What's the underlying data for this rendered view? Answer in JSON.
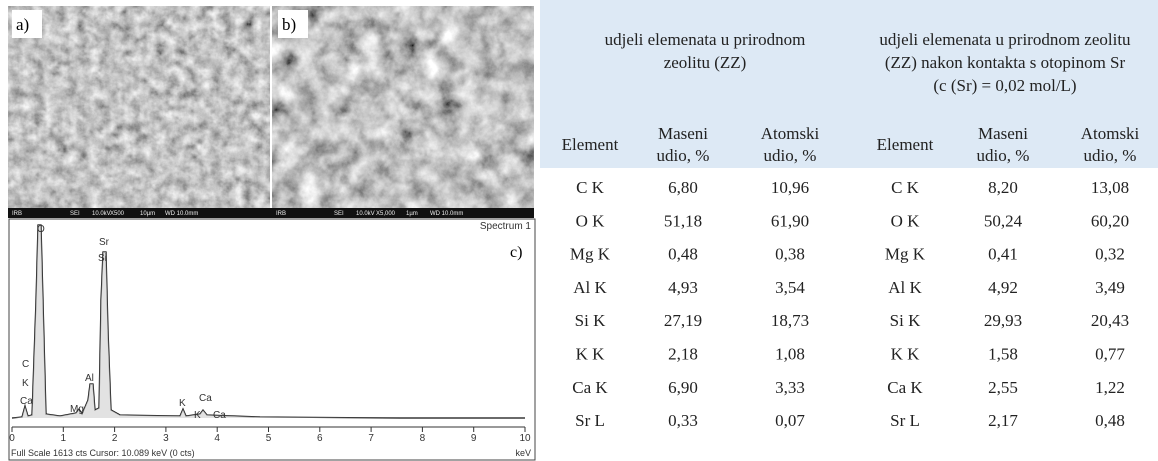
{
  "figure": {
    "panels": [
      {
        "label": "a)",
        "info": [
          "IRB",
          "SEI",
          "10.0kV",
          "X500",
          "10µm",
          "WD 10.0mm"
        ]
      },
      {
        "label": "b)",
        "info": [
          "IRB",
          "SEI",
          "10.0kV",
          "X5,000",
          "1µm",
          "WD 10.0mm"
        ]
      }
    ],
    "spectrum": {
      "label": "c)",
      "title": "Spectrum 1",
      "unit": "keV",
      "footer": "Full Scale 1613 cts  Cursor: 10.089 keV (0 cts)",
      "xlim": [
        0,
        10
      ],
      "xticks": [
        0,
        1,
        2,
        3,
        4,
        5,
        6,
        7,
        8,
        9,
        10
      ],
      "peak_labels": [
        "O",
        "Sr",
        "Si",
        "C",
        "K",
        "Ca",
        "Mg",
        "Al",
        "K",
        "Ca",
        "K",
        "Ca"
      ]
    }
  },
  "table": {
    "group_headers": [
      [
        "udjeli elemenata u prirodnom",
        "zeolitu (ZZ)"
      ],
      [
        "udjeli elemenata u prirodnom zeolitu",
        "(ZZ)  nakon kontakta s otopinom Sr",
        "(c (Sr) = 0,02 mol/L)"
      ]
    ],
    "column_headers": [
      [
        "Element"
      ],
      [
        "Maseni",
        "udio, %"
      ],
      [
        "Atomski",
        "udio, %"
      ],
      [
        "Element"
      ],
      [
        "Maseni",
        "udio, %"
      ],
      [
        "Atomski",
        "udio, %"
      ]
    ],
    "rows": [
      [
        "C K",
        "6,80",
        "10,96",
        "C K",
        "8,20",
        "13,08"
      ],
      [
        "O K",
        "51,18",
        "61,90",
        "O K",
        "50,24",
        "60,20"
      ],
      [
        "Mg K",
        "0,48",
        "0,38",
        "Mg K",
        "0,41",
        "0,32"
      ],
      [
        "Al K",
        "4,93",
        "3,54",
        "Al K",
        "4,92",
        "3,49"
      ],
      [
        "Si K",
        "27,19",
        "18,73",
        "Si K",
        "29,93",
        "20,43"
      ],
      [
        "K K",
        "2,18",
        "1,08",
        "K K",
        "1,58",
        "0,77"
      ],
      [
        "Ca K",
        "6,90",
        "3,33",
        "Ca K",
        "2,55",
        "1,22"
      ],
      [
        "Sr L",
        "0,33",
        "0,07",
        "Sr L",
        "2,17",
        "0,48"
      ]
    ]
  }
}
